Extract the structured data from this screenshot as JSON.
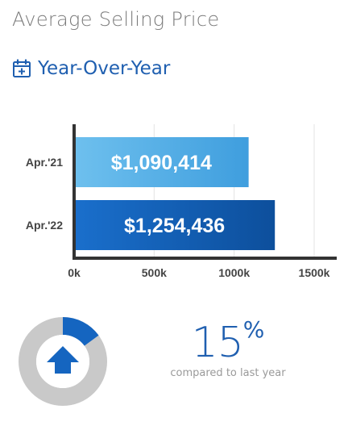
{
  "header": {
    "title": "Average Selling Price",
    "subtitle": "Year-Over-Year",
    "icon": "calendar-plus-icon"
  },
  "chart_data": {
    "type": "bar",
    "orientation": "horizontal",
    "categories": [
      "Apr.'21",
      "Apr.'22"
    ],
    "values": [
      1090414,
      1254436
    ],
    "value_labels": [
      "$1,090,414",
      "$1,254,436"
    ],
    "xlim": [
      0,
      1500000
    ],
    "x_ticks": [
      {
        "value": 0,
        "label": "0k"
      },
      {
        "value": 500000,
        "label": "500k"
      },
      {
        "value": 1000000,
        "label": "1000k"
      },
      {
        "value": 1500000,
        "label": "1500k"
      }
    ],
    "grid": true,
    "colors": [
      "#5bb0e6",
      "#1565c0"
    ]
  },
  "summary": {
    "percent_value": "15",
    "percent_sign": "%",
    "caption": "compared to last year",
    "gauge_fraction": 0.15,
    "trend_icon": "arrow-up-icon",
    "gauge_colors": {
      "fill": "#1565c0",
      "track": "#c9c9c9"
    }
  }
}
